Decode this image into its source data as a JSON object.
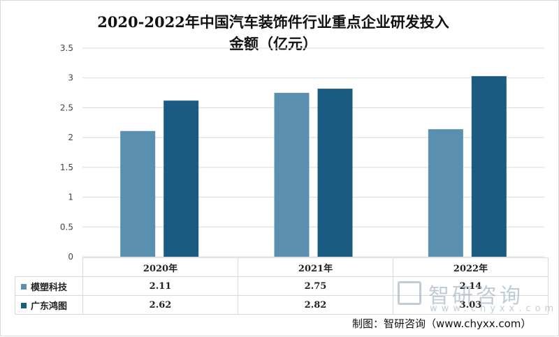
{
  "chart_data": {
    "type": "bar",
    "title": "2020-2022年中国汽车装饰件行业重点企业研发投入金额（亿元）",
    "title_line1": "2020-2022年中国汽车装饰件行业重点企业研发投入",
    "title_line2": "金额（亿元）",
    "categories": [
      "2020年",
      "2021年",
      "2022年"
    ],
    "series": [
      {
        "name": "模塑科技",
        "values": [
          2.11,
          2.75,
          2.14
        ],
        "labels": [
          "2.11",
          "2.75",
          "2.14"
        ],
        "color": "#5b8fb0"
      },
      {
        "name": "广东鸿图",
        "values": [
          2.62,
          2.82,
          3.03
        ],
        "labels": [
          "2.62",
          "2.82",
          "3.03"
        ],
        "color": "#1b5b82"
      }
    ],
    "ylim": [
      0,
      3.5
    ],
    "yticks": [
      "0",
      "0.5",
      "1",
      "1.5",
      "2",
      "2.5",
      "3",
      "3.5"
    ],
    "grid": true,
    "legend": "data-table"
  },
  "watermark": {
    "name": "智研咨询",
    "url": "www.chyxx.com"
  },
  "source": "制图：智研咨询（www.chyxx.com）"
}
